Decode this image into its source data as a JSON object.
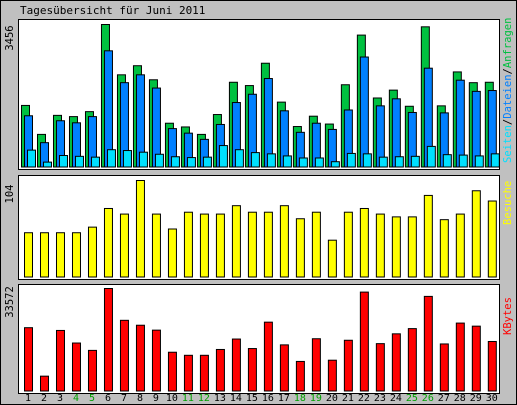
{
  "title": "Tagesübersicht für Juni 2011",
  "colors": {
    "background": "#c0c0c0",
    "panel": "#ffffff",
    "anfragen": "#00c040",
    "dateien": "#0080ff",
    "seiten": "#00e0ff",
    "besuche": "#ffff00",
    "kbytes": "#ff0000",
    "weekday_label": "#000000",
    "weekend_label": "#00a000"
  },
  "legend": {
    "top": [
      "Seiten",
      "Dateien",
      "Anfragen"
    ],
    "top_sep": "/",
    "middle": "Besuche",
    "bottom": "KBytes"
  },
  "chart_data": [
    {
      "type": "bar",
      "panel": "hits",
      "y_max_label": "3456",
      "ylim": [
        0,
        3456
      ],
      "categories": [
        "1",
        "2",
        "3",
        "4",
        "5",
        "6",
        "7",
        "8",
        "9",
        "10",
        "11",
        "12",
        "13",
        "14",
        "15",
        "16",
        "17",
        "18",
        "19",
        "20",
        "21",
        "22",
        "23",
        "24",
        "25",
        "26",
        "27",
        "28",
        "29",
        "30"
      ],
      "weekend_days": [
        "4",
        "5",
        "11",
        "12",
        "18",
        "19",
        "25",
        "26"
      ],
      "series": [
        {
          "name": "Anfragen",
          "values": [
            1500,
            800,
            1260,
            1230,
            1350,
            3456,
            2240,
            2460,
            2120,
            1070,
            980,
            800,
            1280,
            2060,
            1980,
            2520,
            1580,
            990,
            1240,
            1050,
            2000,
            3200,
            1680,
            1870,
            1480,
            3400,
            1490,
            2310,
            2050,
            2060
          ]
        },
        {
          "name": "Dateien",
          "values": [
            1250,
            600,
            1130,
            1080,
            1230,
            2820,
            2050,
            2240,
            1920,
            940,
            830,
            680,
            1040,
            1570,
            1770,
            2150,
            1370,
            850,
            1070,
            920,
            1390,
            2670,
            1490,
            1660,
            1330,
            2400,
            1320,
            2110,
            1840,
            1860
          ]
        },
        {
          "name": "Seiten",
          "values": [
            420,
            130,
            290,
            270,
            250,
            430,
            410,
            370,
            320,
            260,
            240,
            250,
            530,
            430,
            360,
            330,
            280,
            230,
            230,
            140,
            340,
            330,
            250,
            260,
            270,
            510,
            310,
            300,
            280,
            330
          ]
        }
      ]
    },
    {
      "type": "bar",
      "panel": "visits",
      "y_max_label": "104",
      "ylim": [
        0,
        104
      ],
      "categories": [
        "1",
        "2",
        "3",
        "4",
        "5",
        "6",
        "7",
        "8",
        "9",
        "10",
        "11",
        "12",
        "13",
        "14",
        "15",
        "16",
        "17",
        "18",
        "19",
        "20",
        "21",
        "22",
        "23",
        "24",
        "25",
        "26",
        "27",
        "28",
        "29",
        "30"
      ],
      "series": [
        {
          "name": "Besuche",
          "values": [
            48,
            48,
            48,
            48,
            54,
            74,
            68,
            104,
            68,
            52,
            70,
            68,
            68,
            77,
            70,
            70,
            77,
            63,
            70,
            40,
            70,
            74,
            68,
            65,
            65,
            88,
            62,
            68,
            93,
            82
          ]
        }
      ]
    },
    {
      "type": "bar",
      "panel": "kbytes",
      "y_max_label": "33572",
      "ylim": [
        0,
        33572
      ],
      "categories": [
        "1",
        "2",
        "3",
        "4",
        "5",
        "6",
        "7",
        "8",
        "9",
        "10",
        "11",
        "12",
        "13",
        "14",
        "15",
        "16",
        "17",
        "18",
        "19",
        "20",
        "21",
        "22",
        "23",
        "24",
        "25",
        "26",
        "27",
        "28",
        "29",
        "30"
      ],
      "series": [
        {
          "name": "KBytes",
          "values": [
            20800,
            5000,
            19900,
            15800,
            13400,
            33572,
            23200,
            21600,
            20000,
            12800,
            11800,
            11800,
            13700,
            17100,
            14000,
            22600,
            15200,
            9800,
            17200,
            10200,
            16700,
            32400,
            15600,
            18800,
            20500,
            31000,
            15500,
            22300,
            21300,
            16300
          ]
        }
      ]
    }
  ]
}
